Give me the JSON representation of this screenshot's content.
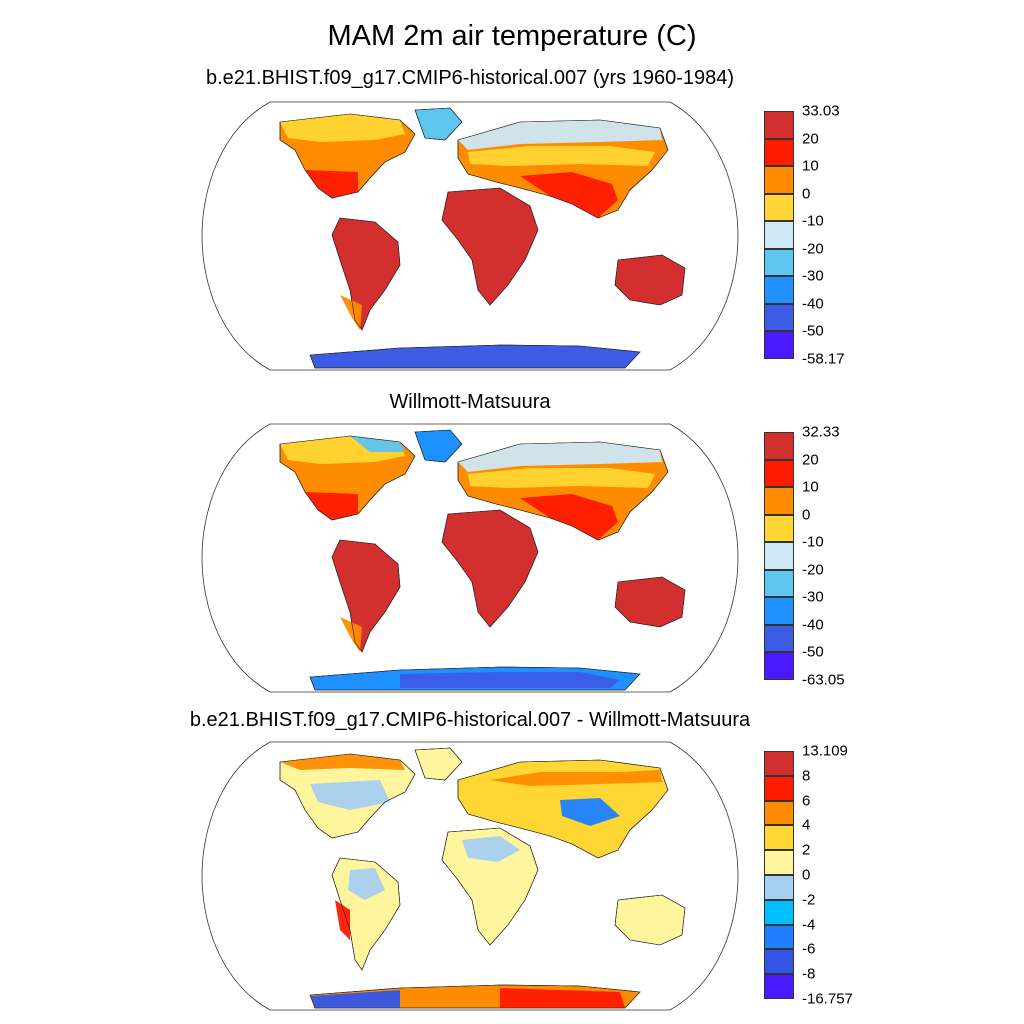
{
  "title": "MAM 2m air temperature (C)",
  "panels": [
    {
      "title": "b.e21.BHIST.f09_g17.CMIP6-historical.007 (yrs 1960-1984)",
      "colorbar": {
        "labels": [
          "33.03",
          "20",
          "10",
          "0",
          "-10",
          "-20",
          "-30",
          "-40",
          "-50",
          "-58.17"
        ],
        "colors": [
          "#d32f2f",
          "#ff1a00",
          "#ff8c00",
          "#ffd633",
          "#cce8f4",
          "#5ec4f0",
          "#1e90ff",
          "#3d5ce6",
          "#4a1aff"
        ]
      }
    },
    {
      "title": "Willmott-Matsuura",
      "colorbar": {
        "labels": [
          "32.33",
          "20",
          "10",
          "0",
          "-10",
          "-20",
          "-30",
          "-40",
          "-50",
          "-63.05"
        ],
        "colors": [
          "#d32f2f",
          "#ff1a00",
          "#ff8c00",
          "#ffd633",
          "#cce8f4",
          "#5ec4f0",
          "#1e90ff",
          "#3d5ce6",
          "#4a1aff"
        ]
      }
    },
    {
      "title": "b.e21.BHIST.f09_g17.CMIP6-historical.007 - Willmott-Matsuura",
      "colorbar": {
        "labels": [
          "13.109",
          "8",
          "6",
          "4",
          "2",
          "0",
          "-2",
          "-4",
          "-6",
          "-8",
          "-16.757"
        ],
        "colors": [
          "#d32f2f",
          "#ff1a00",
          "#ff8c00",
          "#ffd633",
          "#fff59d",
          "#a6cff0",
          "#00bfff",
          "#1e7fff",
          "#3355e6",
          "#4a1aff"
        ]
      }
    }
  ]
}
